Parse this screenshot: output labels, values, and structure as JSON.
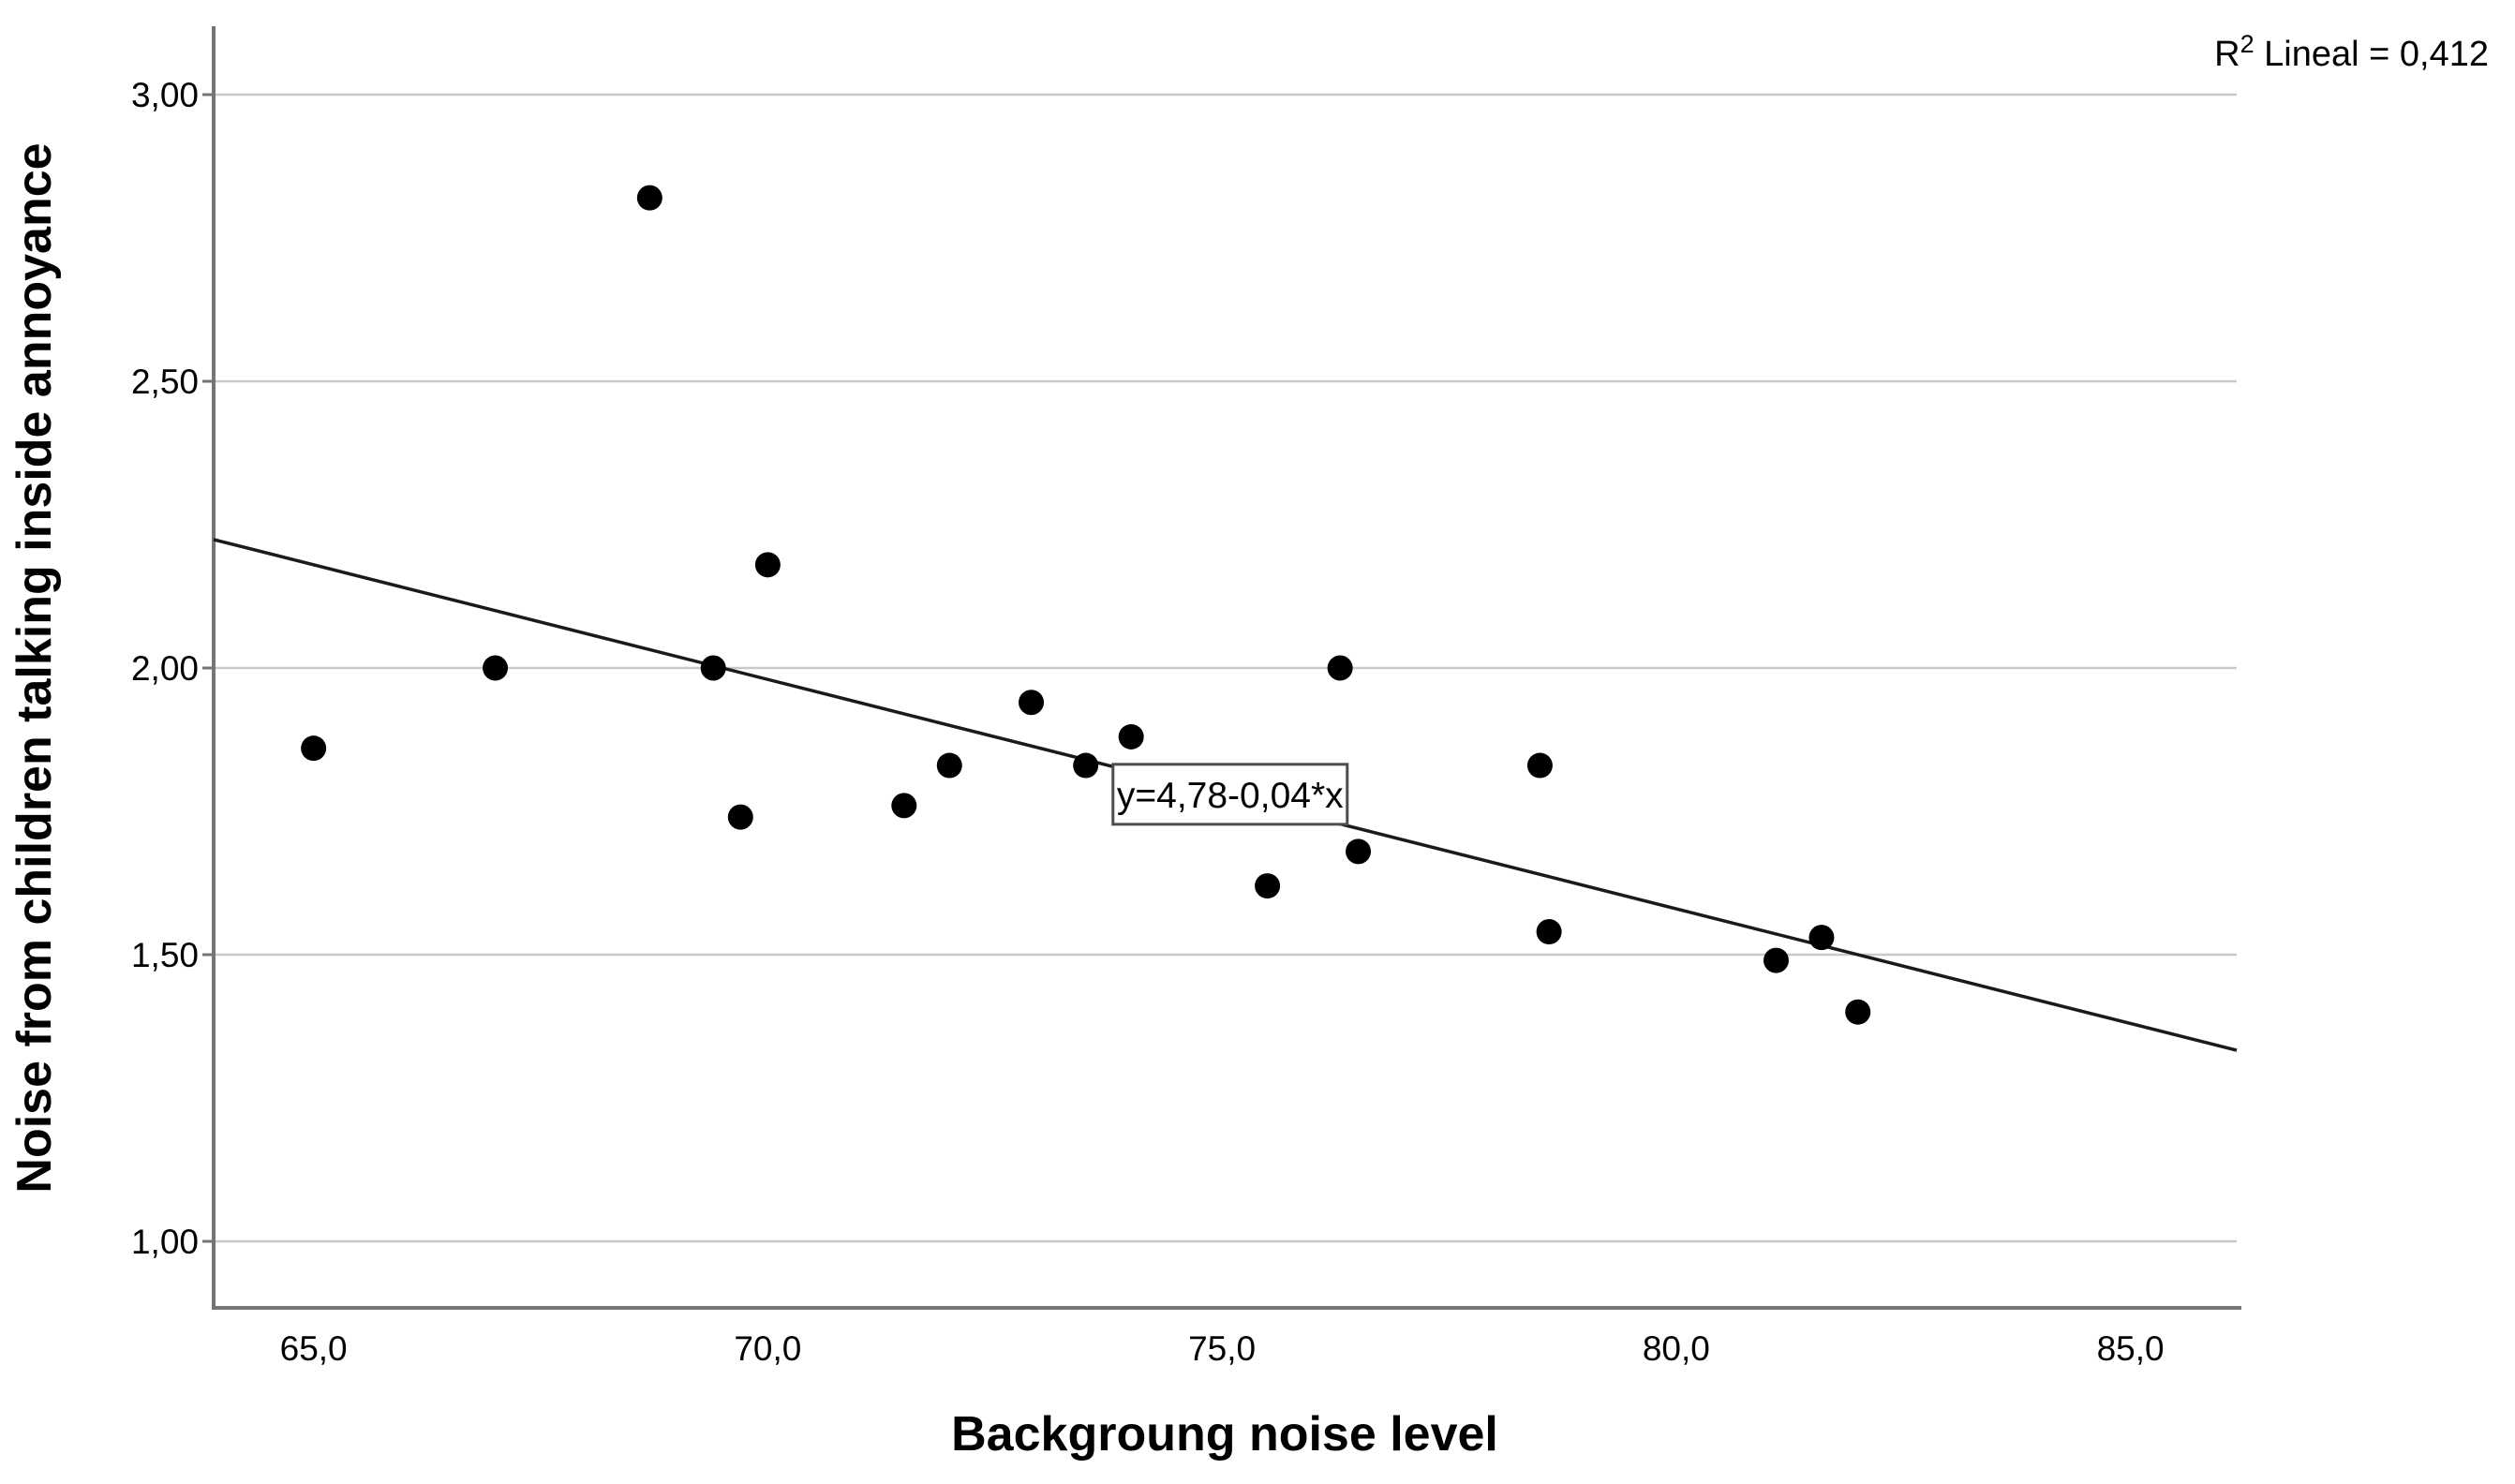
{
  "chart_data": {
    "type": "scatter",
    "title": "",
    "xlabel": "Backgroung noise level",
    "ylabel": "Noise from children talking inside annoyance",
    "x_axis": {
      "min": 63.9,
      "max": 86.17,
      "ticks": [
        65.0,
        70.0,
        75.0,
        80.0,
        85.0
      ],
      "tick_labels": [
        "65,0",
        "70,0",
        "75,0",
        "80,0",
        "85,0"
      ]
    },
    "y_axis": {
      "min": 0.884,
      "max": 3.116,
      "ticks": [
        1.0,
        1.5,
        2.0,
        2.5,
        3.0
      ],
      "tick_labels": [
        "1,00",
        "1,50",
        "2,00",
        "2,50",
        "3,00"
      ]
    },
    "grid": "horizontal-only",
    "legend": "none",
    "points": [
      [
        65.0,
        1.86
      ],
      [
        67.0,
        2.0
      ],
      [
        68.7,
        2.82
      ],
      [
        69.4,
        2.0
      ],
      [
        69.7,
        1.74
      ],
      [
        70.0,
        2.18
      ],
      [
        71.5,
        1.76
      ],
      [
        72.0,
        1.83
      ],
      [
        72.9,
        1.94
      ],
      [
        73.5,
        1.83
      ],
      [
        74.0,
        1.88
      ],
      [
        75.5,
        1.62
      ],
      [
        76.3,
        2.0
      ],
      [
        76.5,
        1.68
      ],
      [
        78.5,
        1.83
      ],
      [
        78.6,
        1.54
      ],
      [
        81.1,
        1.49
      ],
      [
        81.6,
        1.53
      ],
      [
        82.0,
        1.4
      ]
    ],
    "trendline": {
      "slope": -0.04,
      "intercept": 4.78,
      "equation_label": "y=4,78-0,04*x",
      "r2_value": "0,412"
    },
    "annotation_box": {
      "equation": "y=4,78-0,04*x",
      "anchor_x": 73.8,
      "anchor_y": 1.832
    },
    "r2_label": {
      "prefix": "R",
      "sup": "2",
      "rest": " Lineal = 0,412"
    }
  },
  "colors": {
    "point": "#000000",
    "trendline": "#1a1a1a",
    "grid": "#c9c9c9",
    "axis": "#757575",
    "text": "#000000",
    "annotation_border": "#4d4d4d",
    "annotation_fill": "#ffffff",
    "background": "#ffffff"
  }
}
